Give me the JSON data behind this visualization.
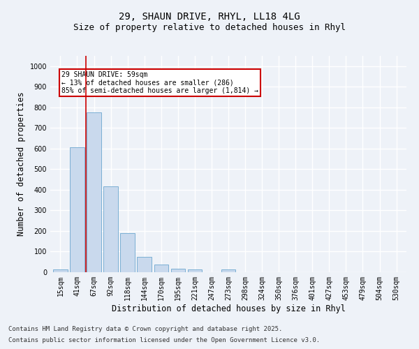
{
  "title1": "29, SHAUN DRIVE, RHYL, LL18 4LG",
  "title2": "Size of property relative to detached houses in Rhyl",
  "xlabel": "Distribution of detached houses by size in Rhyl",
  "ylabel": "Number of detached properties",
  "categories": [
    "15sqm",
    "41sqm",
    "67sqm",
    "92sqm",
    "118sqm",
    "144sqm",
    "170sqm",
    "195sqm",
    "221sqm",
    "247sqm",
    "273sqm",
    "298sqm",
    "324sqm",
    "350sqm",
    "376sqm",
    "401sqm",
    "427sqm",
    "453sqm",
    "479sqm",
    "504sqm",
    "530sqm"
  ],
  "values": [
    15,
    605,
    775,
    415,
    190,
    75,
    38,
    18,
    12,
    0,
    14,
    0,
    0,
    0,
    0,
    0,
    0,
    0,
    0,
    0,
    0
  ],
  "bar_color": "#c9d9ed",
  "bar_edge_color": "#7bafd4",
  "vline_x": 1.5,
  "vline_color": "#cc0000",
  "annotation_line1": "29 SHAUN DRIVE: 59sqm",
  "annotation_line2": "← 13% of detached houses are smaller (286)",
  "annotation_line3": "85% of semi-detached houses are larger (1,814) →",
  "annotation_box_color": "#ffffff",
  "annotation_box_edge": "#cc0000",
  "footer1": "Contains HM Land Registry data © Crown copyright and database right 2025.",
  "footer2": "Contains public sector information licensed under the Open Government Licence v3.0.",
  "ylim": [
    0,
    1050
  ],
  "background_color": "#eef2f8",
  "grid_color": "#ffffff",
  "title1_fontsize": 10,
  "title2_fontsize": 9,
  "footer_fontsize": 6.5,
  "tick_fontsize": 7,
  "label_fontsize": 8.5
}
